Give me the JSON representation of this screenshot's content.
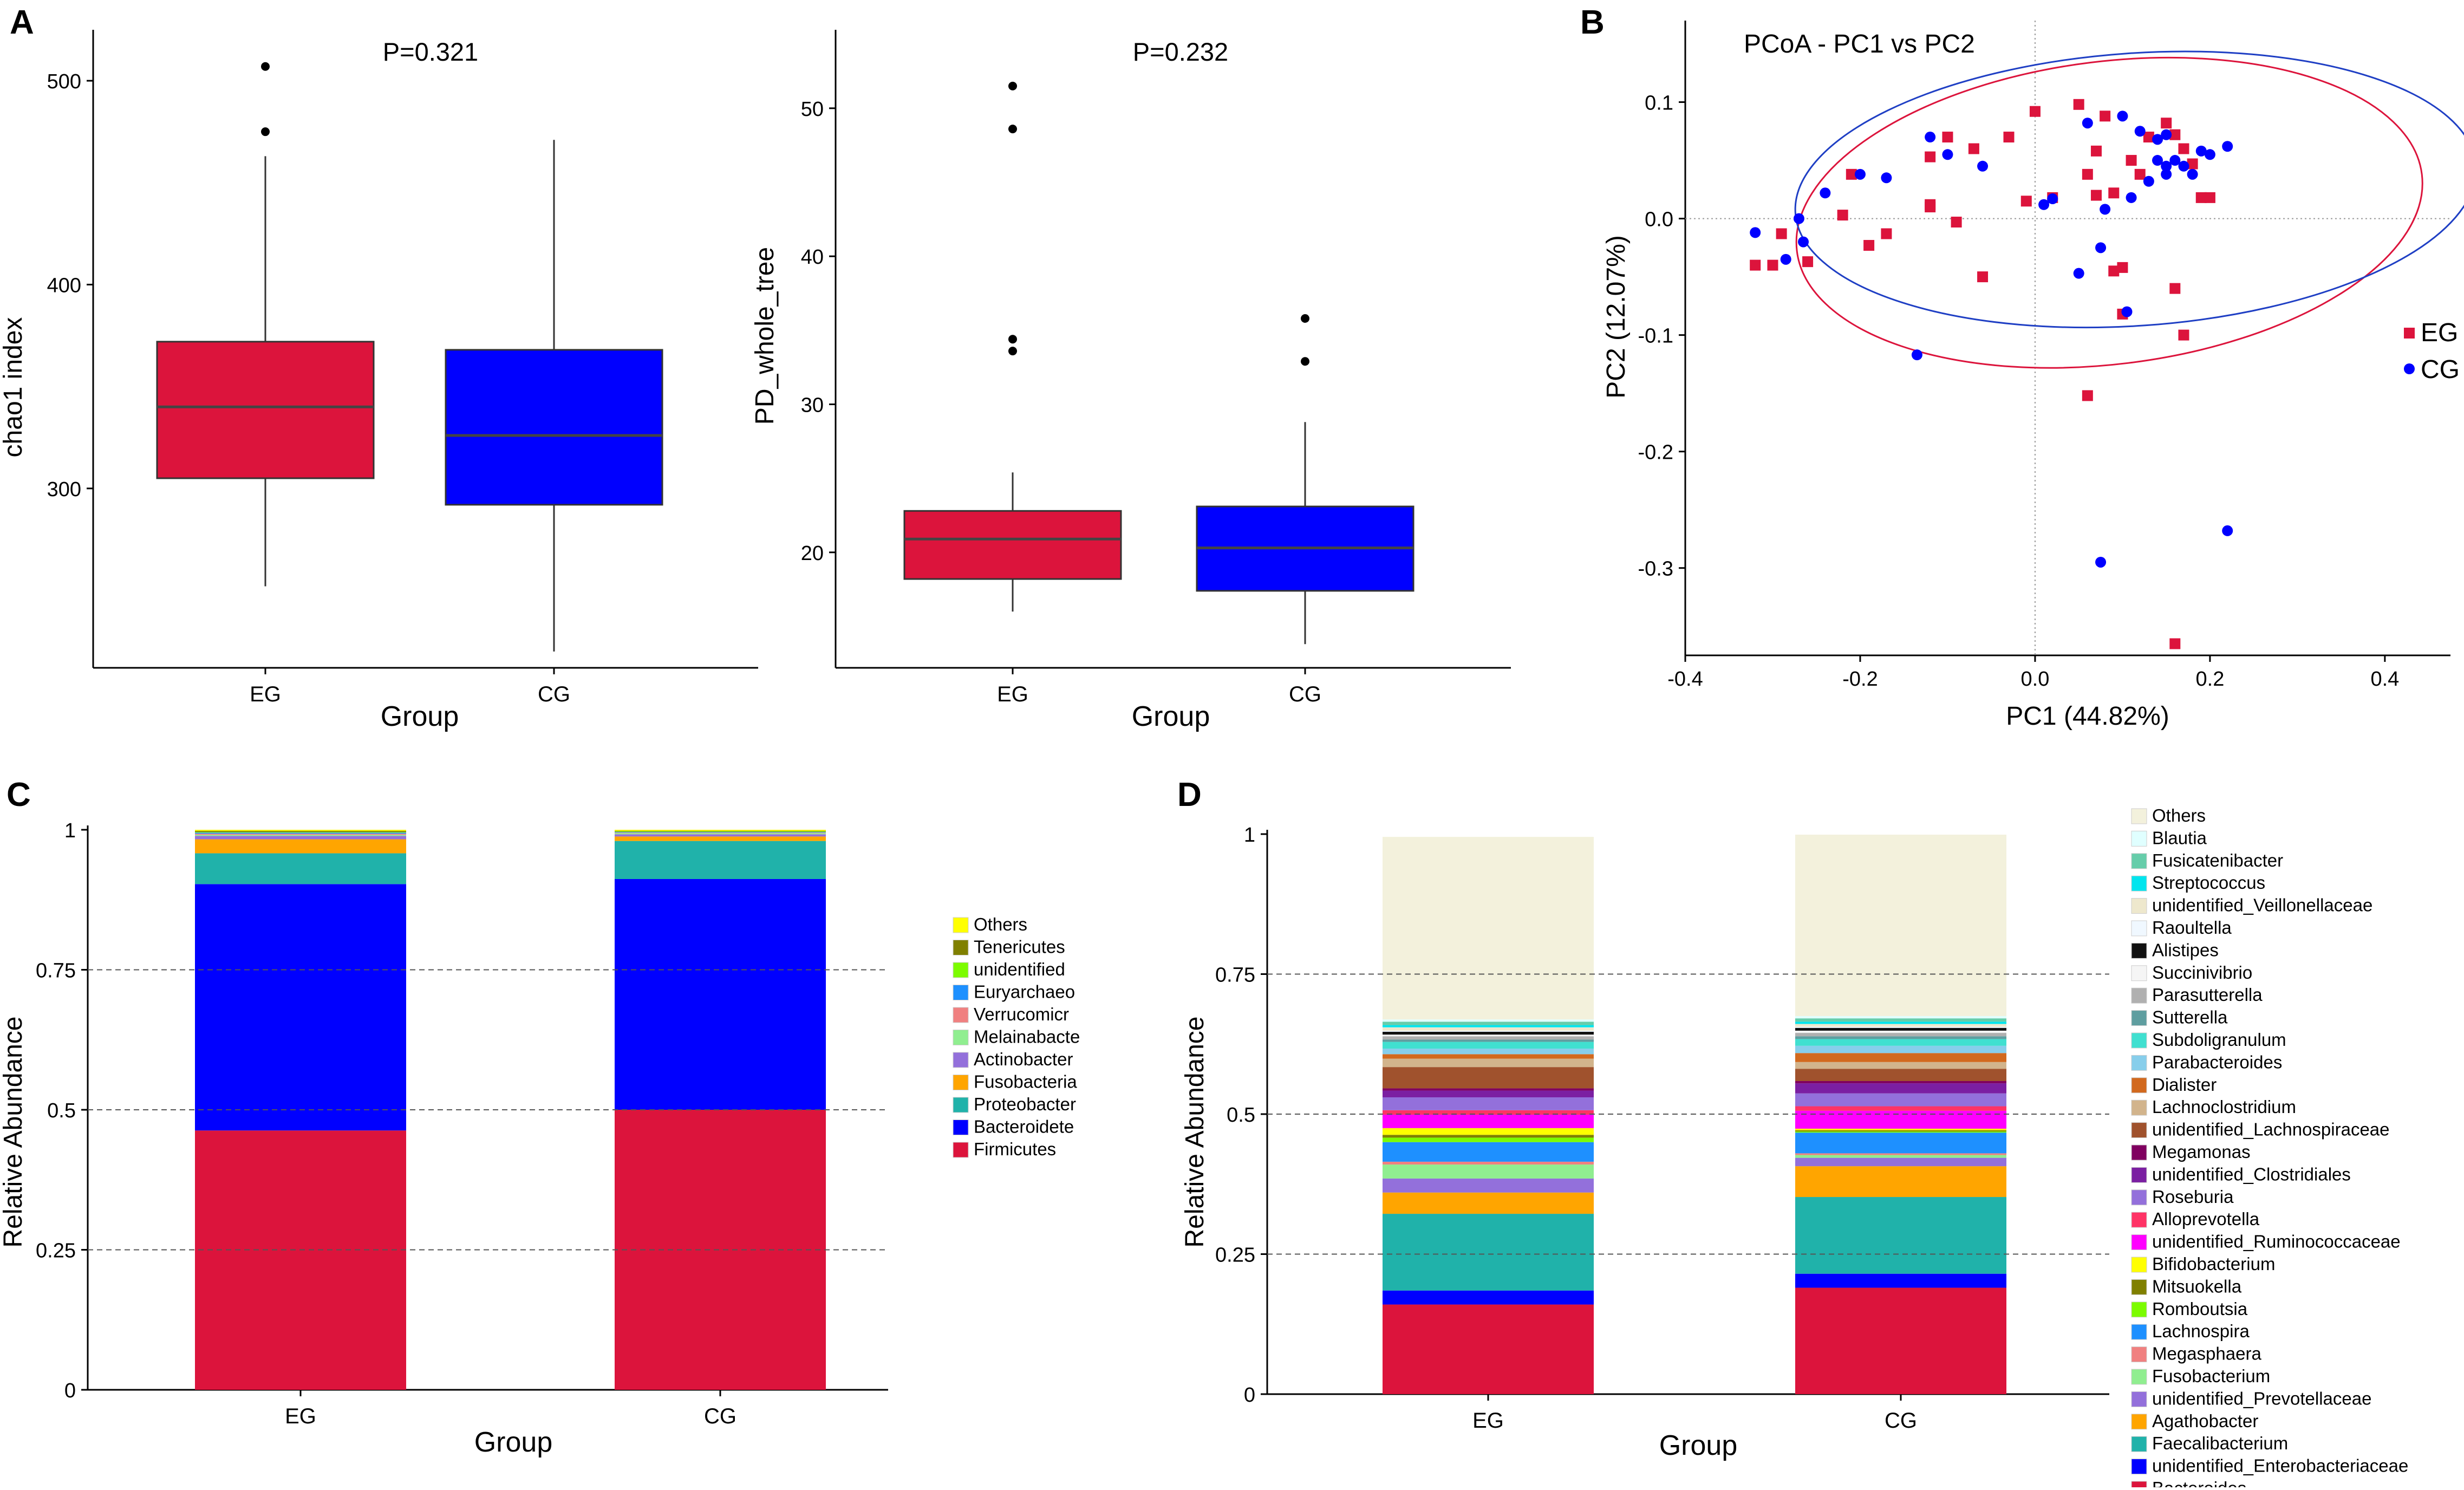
{
  "figure_labels": [
    "A",
    "B",
    "C",
    "D"
  ],
  "colors": {
    "EG": "#dc143c",
    "CG": "#0000ff",
    "EG_ellipse": "#dc143c",
    "CG_ellipse": "#1f3fc4",
    "median": "#444444",
    "axis": "#000000",
    "grid_dash": "#555555"
  },
  "chart_data": [
    {
      "id": "A1",
      "type": "box",
      "ylabel": "chao1 index",
      "xlabel": "Group",
      "annotation": "P=0.321",
      "ylim": [
        212,
        525
      ],
      "yticks": [
        300,
        400,
        500
      ],
      "categories": [
        "EG",
        "CG"
      ],
      "series": [
        {
          "name": "EG",
          "whisker_low": 252,
          "q1": 305,
          "median": 340,
          "q3": 372,
          "whisker_high": 463,
          "outliers": [
            475,
            507
          ]
        },
        {
          "name": "CG",
          "whisker_low": 220,
          "q1": 292,
          "median": 326,
          "q3": 368,
          "whisker_high": 471,
          "outliers": []
        }
      ]
    },
    {
      "id": "A2",
      "type": "box",
      "ylabel": "PD_whole_tree",
      "xlabel": "Group",
      "annotation": "P=0.232",
      "ylim": [
        12.2,
        55.3
      ],
      "yticks": [
        20,
        30,
        40,
        50
      ],
      "categories": [
        "EG",
        "CG"
      ],
      "series": [
        {
          "name": "EG",
          "whisker_low": 16.0,
          "q1": 18.2,
          "median": 20.9,
          "q3": 22.8,
          "whisker_high": 25.4,
          "outliers": [
            33.6,
            34.4,
            48.6,
            51.5
          ]
        },
        {
          "name": "CG",
          "whisker_low": 13.8,
          "q1": 17.4,
          "median": 20.3,
          "q3": 23.1,
          "whisker_high": 28.8,
          "outliers": [
            32.9,
            35.8
          ]
        }
      ]
    },
    {
      "id": "B",
      "type": "scatter",
      "title": "PCoA - PC1 vs PC2",
      "xlabel": "PC1 (44.82%)",
      "ylabel": "PC2 (12.07%)",
      "xlim": [
        -0.4,
        0.475
      ],
      "ylim": [
        -0.375,
        0.17
      ],
      "xticks": [
        -0.4,
        -0.2,
        0.0,
        0.2,
        0.4
      ],
      "yticks": [
        0.1,
        0.0,
        -0.1,
        -0.2,
        -0.3
      ],
      "legend": [
        "EG",
        "CG"
      ],
      "ellipses": [
        {
          "name": "EG",
          "cx": 0.085,
          "cy": 0.005,
          "rx": 0.36,
          "ry": 0.13,
          "angle_deg": 7
        },
        {
          "name": "CG",
          "cx": 0.115,
          "cy": 0.025,
          "rx": 0.39,
          "ry": 0.117,
          "angle_deg": 4
        }
      ],
      "series": [
        {
          "name": "EG",
          "marker": "square",
          "x": [
            -0.32,
            -0.3,
            -0.29,
            -0.26,
            -0.22,
            -0.21,
            -0.19,
            -0.17,
            -0.12,
            -0.12,
            -0.12,
            -0.1,
            -0.09,
            -0.07,
            -0.06,
            -0.03,
            -0.01,
            0.0,
            0.02,
            0.05,
            0.07,
            0.08,
            0.06,
            0.09,
            0.09,
            0.11,
            0.12,
            0.13,
            0.15,
            0.16,
            0.17,
            0.18,
            0.19,
            0.2,
            0.16,
            0.06,
            0.17,
            0.16,
            0.1,
            0.07,
            0.1
          ],
          "y": [
            -0.04,
            -0.04,
            -0.013,
            -0.037,
            0.003,
            0.038,
            -0.023,
            -0.013,
            0.053,
            0.012,
            0.01,
            0.07,
            -0.003,
            0.06,
            -0.05,
            0.07,
            0.015,
            0.092,
            0.018,
            0.098,
            0.058,
            0.088,
            0.038,
            0.022,
            -0.045,
            0.05,
            0.038,
            0.07,
            0.082,
            0.072,
            0.06,
            0.047,
            0.018,
            0.018,
            -0.06,
            -0.152,
            -0.1,
            -0.365,
            -0.042,
            0.02,
            -0.082
          ]
        },
        {
          "name": "CG",
          "marker": "circle",
          "x": [
            -0.32,
            -0.285,
            -0.27,
            -0.265,
            -0.24,
            -0.2,
            -0.17,
            -0.12,
            -0.1,
            -0.06,
            0.01,
            0.02,
            0.05,
            0.06,
            0.08,
            0.1,
            0.11,
            0.12,
            0.13,
            0.14,
            0.14,
            0.15,
            0.15,
            0.15,
            0.16,
            0.17,
            0.18,
            0.19,
            0.2,
            0.22,
            0.105,
            0.075,
            -0.135,
            0.075,
            0.22
          ],
          "y": [
            -0.012,
            -0.035,
            0.0,
            -0.02,
            0.022,
            0.038,
            0.035,
            0.07,
            0.055,
            0.045,
            0.012,
            0.017,
            -0.047,
            0.082,
            0.008,
            0.088,
            0.018,
            0.075,
            0.032,
            0.068,
            0.05,
            0.045,
            0.038,
            0.072,
            0.05,
            0.045,
            0.038,
            0.058,
            0.055,
            0.062,
            -0.08,
            -0.295,
            -0.117,
            -0.025,
            -0.268
          ]
        }
      ]
    },
    {
      "id": "C",
      "type": "bar",
      "stacked": true,
      "ylabel": "Relative Abundance",
      "xlabel": "Group",
      "ylim": [
        0,
        1
      ],
      "yticks": [
        0,
        0.25,
        0.5,
        0.75,
        1
      ],
      "ytick_labels": [
        "0",
        "0.25",
        "0.5",
        "0.75",
        "1"
      ],
      "categories": [
        "EG",
        "CG"
      ],
      "legend_order": [
        "Others",
        "Tenericutes",
        "unidentified",
        "Euryarchaeo",
        "Verrucomicr",
        "Melainabacte",
        "Actinobacter",
        "Fusobacteria",
        "Proteobacter",
        "Bacteroidete",
        "Firmicutes"
      ],
      "series": [
        {
          "name": "Firmicutes",
          "color": "#dc143c",
          "values": [
            0.463,
            0.5
          ]
        },
        {
          "name": "Bacteroidete",
          "color": "#0000ff",
          "values": [
            0.44,
            0.412
          ]
        },
        {
          "name": "Proteobacter",
          "color": "#20b2aa",
          "values": [
            0.055,
            0.068
          ]
        },
        {
          "name": "Fusobacteria",
          "color": "#ffa500",
          "values": [
            0.025,
            0.008
          ]
        },
        {
          "name": "Actinobacter",
          "color": "#9370db",
          "values": [
            0.006,
            0.004
          ]
        },
        {
          "name": "Melainabacte",
          "color": "#90ee90",
          "values": [
            0.002,
            0.002
          ]
        },
        {
          "name": "Verrucomicr",
          "color": "#f08080",
          "values": [
            0.002,
            0.001
          ]
        },
        {
          "name": "Euryarchaeo",
          "color": "#1e90ff",
          "values": [
            0.002,
            0.001
          ]
        },
        {
          "name": "unidentified",
          "color": "#7cfc00",
          "values": [
            0.001,
            0.001
          ]
        },
        {
          "name": "Tenericutes",
          "color": "#808000",
          "values": [
            0.002,
            0.001
          ]
        },
        {
          "name": "Others",
          "color": "#ffff00",
          "values": [
            0.002,
            0.002
          ]
        }
      ]
    },
    {
      "id": "D",
      "type": "bar",
      "stacked": true,
      "ylabel": "Relative Abundance",
      "xlabel": "Group",
      "ylim": [
        0,
        1
      ],
      "yticks": [
        0,
        0.25,
        0.5,
        0.75,
        1
      ],
      "ytick_labels": [
        "0",
        "0.25",
        "0.5",
        "0.75",
        "1"
      ],
      "categories": [
        "EG",
        "CG"
      ],
      "legend_order": [
        "Others",
        "Blautia",
        "Fusicatenibacter",
        "Streptococcus",
        "unidentified_Veillonellaceae",
        "Raoultella",
        "Alistipes",
        "Succinivibrio",
        "Parasutterella",
        "Sutterella",
        "Subdoligranulum",
        "Parabacteroides",
        "Dialister",
        "Lachnoclostridium",
        "unidentified_Lachnospiraceae",
        "Megamonas",
        "unidentified_Clostridiales",
        "Roseburia",
        "Alloprevotella",
        "unidentified_Ruminococcaceae",
        "Bifidobacterium",
        "Mitsuokella",
        "Romboutsia",
        "Lachnospira",
        "Megasphaera",
        "Fusobacterium",
        "unidentified_Prevotellaceae",
        "Agathobacter",
        "Faecalibacterium",
        "unidentified_Enterobacteriaceae",
        "Bacteroides"
      ],
      "series": [
        {
          "name": "Bacteroides",
          "color": "#dc143c",
          "values": [
            0.16,
            0.19
          ]
        },
        {
          "name": "unidentified_Enterobacteriaceae",
          "color": "#0000ff",
          "values": [
            0.025,
            0.025
          ]
        },
        {
          "name": "Faecalibacterium",
          "color": "#20b2aa",
          "values": [
            0.137,
            0.137
          ]
        },
        {
          "name": "Agathobacter",
          "color": "#ffa500",
          "values": [
            0.038,
            0.055
          ]
        },
        {
          "name": "unidentified_Prevotellaceae",
          "color": "#9370db",
          "values": [
            0.025,
            0.015
          ]
        },
        {
          "name": "Fusobacterium",
          "color": "#90ee90",
          "values": [
            0.025,
            0.005
          ]
        },
        {
          "name": "Megasphaera",
          "color": "#f08080",
          "values": [
            0.005,
            0.003
          ]
        },
        {
          "name": "Lachnospira",
          "color": "#1e90ff",
          "values": [
            0.035,
            0.037
          ]
        },
        {
          "name": "Romboutsia",
          "color": "#7cfc00",
          "values": [
            0.008,
            0.002
          ]
        },
        {
          "name": "Mitsuokella",
          "color": "#808000",
          "values": [
            0.005,
            0.002
          ]
        },
        {
          "name": "Bifidobacterium",
          "color": "#ffff00",
          "values": [
            0.012,
            0.003
          ]
        },
        {
          "name": "unidentified_Ruminococcaceae",
          "color": "#ff00ff",
          "values": [
            0.024,
            0.032
          ]
        },
        {
          "name": "Alloprevotella",
          "color": "#ff3366",
          "values": [
            0.008,
            0.008
          ]
        },
        {
          "name": "Roseburia",
          "color": "#9370db",
          "values": [
            0.023,
            0.023
          ]
        },
        {
          "name": "unidentified_Clostridiales",
          "color": "#7b1fa2",
          "values": [
            0.012,
            0.018
          ]
        },
        {
          "name": "Megamonas",
          "color": "#800060",
          "values": [
            0.004,
            0.004
          ]
        },
        {
          "name": "unidentified_Lachnospiraceae",
          "color": "#a0522d",
          "values": [
            0.038,
            0.022
          ]
        },
        {
          "name": "Lachnoclostridium",
          "color": "#d2b48c",
          "values": [
            0.015,
            0.012
          ]
        },
        {
          "name": "Dialister",
          "color": "#d2691e",
          "values": [
            0.008,
            0.016
          ]
        },
        {
          "name": "Parabacteroides",
          "color": "#87ceeb",
          "values": [
            0.01,
            0.013
          ]
        },
        {
          "name": "Subdoligranulum",
          "color": "#40e0d0",
          "values": [
            0.012,
            0.012
          ]
        },
        {
          "name": "Sutterella",
          "color": "#5f9ea0",
          "values": [
            0.004,
            0.005
          ]
        },
        {
          "name": "Parasutterella",
          "color": "#b0b0b0",
          "values": [
            0.006,
            0.006
          ]
        },
        {
          "name": "Succinivibrio",
          "color": "#f5f5f5",
          "values": [
            0.003,
            0.004
          ]
        },
        {
          "name": "Alistipes",
          "color": "#111111",
          "values": [
            0.005,
            0.005
          ]
        },
        {
          "name": "Raoultella",
          "color": "#f0f8ff",
          "values": [
            0.002,
            0.002
          ]
        },
        {
          "name": "unidentified_Veillonellaceae",
          "color": "#eee8cd",
          "values": [
            0.006,
            0.005
          ]
        },
        {
          "name": "Streptococcus",
          "color": "#00e5ee",
          "values": [
            0.004,
            0.004
          ]
        },
        {
          "name": "Fusicatenibacter",
          "color": "#66cdaa",
          "values": [
            0.006,
            0.006
          ]
        },
        {
          "name": "Blautia",
          "color": "#e0ffff",
          "values": [
            0.004,
            0.004
          ]
        },
        {
          "name": "Others",
          "color": "#f3f1dc",
          "values": [
            0.326,
            0.324
          ]
        }
      ]
    }
  ]
}
